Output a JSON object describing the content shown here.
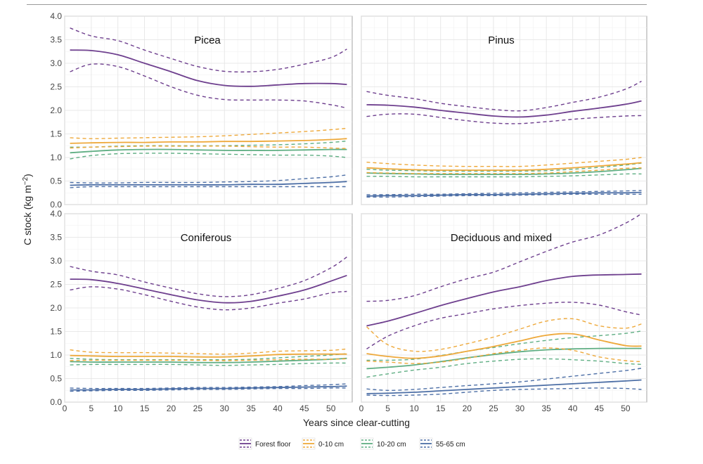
{
  "chart_data": {
    "type": "line",
    "xlabel": "Years since clear-cutting",
    "ylabel": "C stock (kg m",
    "ylabel_sup": "−2",
    "ylabel_close": ")",
    "xlim": [
      0,
      54
    ],
    "ylim": [
      0,
      4
    ],
    "xticks": [
      "0",
      "5",
      "10",
      "15",
      "20",
      "25",
      "30",
      "35",
      "40",
      "45",
      "50"
    ],
    "yticks": [
      "0.0",
      "0.5",
      "1.0",
      "1.5",
      "2.0",
      "2.5",
      "3.0",
      "3.5",
      "4.0"
    ],
    "legend_position": "bottom",
    "series_meta": [
      {
        "name": "Forest floor",
        "color": "#6e3f8e"
      },
      {
        "name": "0-10 cm",
        "color": "#eea93b"
      },
      {
        "name": "10-20 cm",
        "color": "#5fae83"
      },
      {
        "name": "55-65 cm",
        "color": "#4d6fa6"
      }
    ],
    "panels": [
      {
        "title": "Picea",
        "x": [
          1,
          5,
          10,
          15,
          20,
          25,
          30,
          35,
          40,
          45,
          50,
          53
        ],
        "series": [
          {
            "name": "Forest floor",
            "mean": [
              3.28,
              3.27,
              3.18,
              3.0,
              2.82,
              2.63,
              2.53,
              2.51,
              2.54,
              2.57,
              2.57,
              2.55
            ],
            "lower": [
              2.82,
              2.98,
              2.93,
              2.73,
              2.5,
              2.32,
              2.23,
              2.22,
              2.22,
              2.2,
              2.12,
              2.05
            ],
            "upper": [
              3.75,
              3.58,
              3.48,
              3.28,
              3.1,
              2.93,
              2.83,
              2.82,
              2.87,
              2.98,
              3.12,
              3.3
            ]
          },
          {
            "name": "0-10 cm",
            "mean": [
              1.3,
              1.31,
              1.32,
              1.32,
              1.33,
              1.33,
              1.34,
              1.34,
              1.35,
              1.36,
              1.38,
              1.4
            ],
            "lower": [
              1.2,
              1.22,
              1.23,
              1.24,
              1.24,
              1.24,
              1.24,
              1.23,
              1.22,
              1.22,
              1.2,
              1.19
            ],
            "upper": [
              1.42,
              1.4,
              1.41,
              1.42,
              1.43,
              1.44,
              1.46,
              1.49,
              1.52,
              1.55,
              1.59,
              1.62
            ]
          },
          {
            "name": "10-20 cm",
            "mean": [
              1.1,
              1.13,
              1.16,
              1.17,
              1.17,
              1.16,
              1.15,
              1.15,
              1.15,
              1.16,
              1.17,
              1.17
            ],
            "lower": [
              0.97,
              1.04,
              1.08,
              1.09,
              1.09,
              1.08,
              1.07,
              1.06,
              1.05,
              1.05,
              1.03,
              1.0
            ],
            "upper": [
              1.22,
              1.22,
              1.24,
              1.25,
              1.25,
              1.25,
              1.25,
              1.26,
              1.27,
              1.29,
              1.32,
              1.35
            ]
          },
          {
            "name": "55-65 cm",
            "mean": [
              0.41,
              0.42,
              0.42,
              0.42,
              0.42,
              0.42,
              0.42,
              0.43,
              0.43,
              0.45,
              0.47,
              0.49
            ],
            "lower": [
              0.36,
              0.38,
              0.38,
              0.38,
              0.38,
              0.38,
              0.38,
              0.38,
              0.38,
              0.38,
              0.38,
              0.38
            ],
            "upper": [
              0.47,
              0.46,
              0.46,
              0.47,
              0.47,
              0.47,
              0.48,
              0.49,
              0.51,
              0.55,
              0.59,
              0.63
            ]
          }
        ]
      },
      {
        "title": "Pinus",
        "x": [
          1,
          5,
          10,
          15,
          20,
          25,
          30,
          35,
          40,
          45,
          50,
          53
        ],
        "series": [
          {
            "name": "Forest floor",
            "mean": [
              2.12,
              2.11,
              2.07,
              2.0,
              1.94,
              1.88,
              1.86,
              1.9,
              1.98,
              2.05,
              2.13,
              2.2
            ],
            "lower": [
              1.87,
              1.92,
              1.92,
              1.85,
              1.78,
              1.73,
              1.72,
              1.76,
              1.81,
              1.85,
              1.88,
              1.89
            ],
            "upper": [
              2.4,
              2.32,
              2.25,
              2.15,
              2.08,
              2.02,
              1.99,
              2.06,
              2.17,
              2.28,
              2.45,
              2.62
            ]
          },
          {
            "name": "0-10 cm",
            "mean": [
              0.78,
              0.76,
              0.74,
              0.73,
              0.73,
              0.73,
              0.73,
              0.75,
              0.78,
              0.82,
              0.86,
              0.89
            ],
            "lower": [
              0.68,
              0.67,
              0.66,
              0.66,
              0.66,
              0.66,
              0.66,
              0.67,
              0.7,
              0.73,
              0.77,
              0.78
            ],
            "upper": [
              0.9,
              0.87,
              0.84,
              0.82,
              0.81,
              0.81,
              0.81,
              0.84,
              0.88,
              0.92,
              0.96,
              1.0
            ]
          },
          {
            "name": "10-20 cm",
            "mean": [
              0.67,
              0.66,
              0.65,
              0.64,
              0.64,
              0.64,
              0.64,
              0.65,
              0.67,
              0.7,
              0.74,
              0.77
            ],
            "lower": [
              0.6,
              0.6,
              0.59,
              0.59,
              0.59,
              0.59,
              0.59,
              0.6,
              0.61,
              0.63,
              0.65,
              0.65
            ],
            "upper": [
              0.75,
              0.73,
              0.72,
              0.71,
              0.71,
              0.71,
              0.71,
              0.72,
              0.75,
              0.79,
              0.84,
              0.88
            ]
          },
          {
            "name": "55-65 cm",
            "mean": [
              0.18,
              0.19,
              0.19,
              0.2,
              0.21,
              0.21,
              0.22,
              0.23,
              0.24,
              0.25,
              0.25,
              0.26
            ],
            "lower": [
              0.16,
              0.16,
              0.17,
              0.18,
              0.19,
              0.19,
              0.2,
              0.21,
              0.22,
              0.22,
              0.22,
              0.22
            ],
            "upper": [
              0.21,
              0.21,
              0.22,
              0.22,
              0.23,
              0.24,
              0.25,
              0.26,
              0.27,
              0.28,
              0.29,
              0.3
            ]
          }
        ]
      },
      {
        "title": "Coniferous",
        "x": [
          1,
          5,
          10,
          15,
          20,
          25,
          30,
          35,
          40,
          45,
          50,
          53
        ],
        "series": [
          {
            "name": "Forest floor",
            "mean": [
              2.61,
              2.6,
              2.52,
              2.4,
              2.28,
              2.17,
              2.11,
              2.14,
              2.25,
              2.38,
              2.57,
              2.69
            ],
            "lower": [
              2.38,
              2.45,
              2.4,
              2.28,
              2.14,
              2.02,
              1.96,
              2.0,
              2.1,
              2.19,
              2.32,
              2.35
            ],
            "upper": [
              2.88,
              2.78,
              2.7,
              2.55,
              2.42,
              2.3,
              2.24,
              2.28,
              2.41,
              2.58,
              2.85,
              3.08
            ]
          },
          {
            "name": "0-10 cm",
            "mean": [
              0.99,
              0.98,
              0.97,
              0.97,
              0.97,
              0.96,
              0.96,
              0.98,
              1.01,
              1.02,
              1.02,
              1.02
            ],
            "lower": [
              0.88,
              0.89,
              0.89,
              0.89,
              0.89,
              0.89,
              0.88,
              0.89,
              0.9,
              0.91,
              0.91,
              0.92
            ],
            "upper": [
              1.11,
              1.06,
              1.05,
              1.05,
              1.04,
              1.03,
              1.02,
              1.04,
              1.08,
              1.09,
              1.1,
              1.13
            ]
          },
          {
            "name": "10-20 cm",
            "mean": [
              0.86,
              0.85,
              0.85,
              0.85,
              0.85,
              0.84,
              0.84,
              0.85,
              0.87,
              0.89,
              0.91,
              0.93
            ],
            "lower": [
              0.79,
              0.8,
              0.8,
              0.8,
              0.8,
              0.79,
              0.78,
              0.79,
              0.8,
              0.82,
              0.83,
              0.83
            ],
            "upper": [
              0.93,
              0.91,
              0.9,
              0.9,
              0.9,
              0.9,
              0.9,
              0.91,
              0.94,
              0.97,
              1.0,
              1.03
            ]
          },
          {
            "name": "55-65 cm",
            "mean": [
              0.26,
              0.26,
              0.27,
              0.27,
              0.28,
              0.29,
              0.29,
              0.3,
              0.31,
              0.32,
              0.33,
              0.34
            ],
            "lower": [
              0.23,
              0.24,
              0.25,
              0.25,
              0.26,
              0.27,
              0.27,
              0.28,
              0.29,
              0.29,
              0.3,
              0.3
            ],
            "upper": [
              0.3,
              0.29,
              0.29,
              0.29,
              0.3,
              0.31,
              0.31,
              0.32,
              0.33,
              0.35,
              0.37,
              0.39
            ]
          }
        ]
      },
      {
        "title": "Deciduous and mixed",
        "x": [
          1,
          5,
          10,
          15,
          20,
          25,
          30,
          35,
          40,
          45,
          50,
          53
        ],
        "series": [
          {
            "name": "Forest floor",
            "mean": [
              1.62,
              1.72,
              1.88,
              2.05,
              2.2,
              2.34,
              2.45,
              2.58,
              2.67,
              2.7,
              2.71,
              2.72
            ],
            "lower": [
              1.13,
              1.4,
              1.62,
              1.78,
              1.88,
              1.98,
              2.05,
              2.1,
              2.12,
              2.06,
              1.92,
              1.85
            ],
            "upper": [
              2.14,
              2.16,
              2.26,
              2.45,
              2.62,
              2.76,
              2.98,
              3.2,
              3.4,
              3.55,
              3.8,
              4.0
            ]
          },
          {
            "name": "0-10 cm",
            "mean": [
              1.03,
              0.97,
              0.93,
              0.98,
              1.08,
              1.18,
              1.3,
              1.42,
              1.45,
              1.32,
              1.2,
              1.19
            ],
            "lower": [
              0.87,
              0.85,
              0.82,
              0.85,
              0.93,
              1.03,
              1.1,
              1.15,
              1.1,
              0.96,
              0.88,
              0.86
            ],
            "upper": [
              1.6,
              1.22,
              1.08,
              1.12,
              1.24,
              1.38,
              1.55,
              1.72,
              1.77,
              1.62,
              1.57,
              1.66
            ]
          },
          {
            "name": "10-20 cm",
            "mean": [
              0.71,
              0.74,
              0.79,
              0.86,
              0.94,
              1.01,
              1.07,
              1.11,
              1.13,
              1.14,
              1.14,
              1.14
            ],
            "lower": [
              0.53,
              0.6,
              0.68,
              0.74,
              0.82,
              0.87,
              0.91,
              0.92,
              0.9,
              0.87,
              0.82,
              0.8
            ],
            "upper": [
              0.89,
              0.89,
              0.91,
              0.99,
              1.08,
              1.16,
              1.24,
              1.31,
              1.37,
              1.41,
              1.46,
              1.51
            ]
          },
          {
            "name": "55-65 cm",
            "mean": [
              0.18,
              0.19,
              0.21,
              0.24,
              0.27,
              0.3,
              0.33,
              0.36,
              0.39,
              0.42,
              0.45,
              0.47
            ],
            "lower": [
              0.15,
              0.14,
              0.15,
              0.17,
              0.21,
              0.25,
              0.27,
              0.28,
              0.29,
              0.3,
              0.29,
              0.27
            ],
            "upper": [
              0.28,
              0.25,
              0.27,
              0.31,
              0.35,
              0.39,
              0.43,
              0.49,
              0.55,
              0.61,
              0.67,
              0.72
            ]
          }
        ]
      }
    ]
  }
}
